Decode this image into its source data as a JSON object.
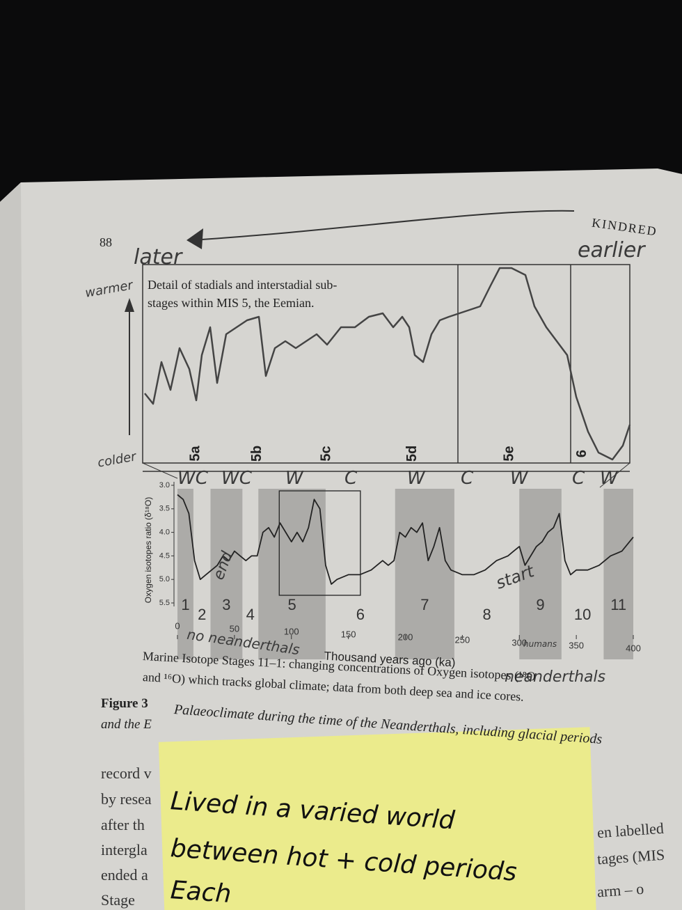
{
  "header": {
    "page_number": "88",
    "running_head": "KINDRED"
  },
  "annotations": {
    "later": "later",
    "earlier": "earlier",
    "warmer": "warmer",
    "colder": "colder",
    "end": "end",
    "start": "start",
    "no_neanderthals": "no neanderthals",
    "neanderthals": "neanderthals",
    "humans": "humans",
    "climate_marks": [
      "WC",
      "WC",
      "W",
      "C",
      "W",
      "C",
      "W",
      "C",
      "W"
    ]
  },
  "detail_chart": {
    "title": "Detail of stadials and interstadial sub-stages within MIS 5, the Eemian.",
    "substages": [
      "5a",
      "5b",
      "5c",
      "5d",
      "5e",
      "6"
    ]
  },
  "chart_data": {
    "type": "line",
    "xlabel": "Thousand years ago (ka)",
    "ylabel": "Oxygen isotopes ratio (δ¹⁸O)",
    "x": [
      0,
      5,
      10,
      15,
      20,
      25,
      30,
      35,
      40,
      45,
      50,
      55,
      60,
      65,
      70,
      75,
      80,
      85,
      90,
      95,
      100,
      105,
      110,
      115,
      120,
      125,
      130,
      135,
      140,
      150,
      160,
      170,
      180,
      185,
      190,
      195,
      200,
      205,
      210,
      215,
      220,
      225,
      230,
      235,
      240,
      250,
      260,
      270,
      280,
      290,
      295,
      300,
      305,
      310,
      315,
      320,
      325,
      330,
      335,
      340,
      345,
      350,
      360,
      370,
      380,
      390,
      400
    ],
    "series": [
      {
        "color": "#222222",
        "values": [
          3.2,
          3.3,
          3.6,
          4.6,
          5.0,
          4.9,
          4.8,
          4.7,
          4.5,
          4.6,
          4.4,
          4.5,
          4.6,
          4.5,
          4.5,
          4.0,
          3.9,
          4.1,
          3.8,
          4.0,
          4.2,
          4.0,
          4.2,
          3.9,
          3.3,
          3.5,
          4.7,
          5.1,
          5.0,
          4.9,
          4.9,
          4.8,
          4.6,
          4.7,
          4.6,
          4.0,
          4.1,
          3.9,
          4.0,
          3.8,
          4.6,
          4.3,
          3.9,
          4.6,
          4.8,
          4.9,
          4.9,
          4.8,
          4.6,
          4.5,
          4.4,
          4.3,
          4.7,
          4.5,
          4.3,
          4.2,
          4.0,
          3.9,
          3.6,
          4.6,
          4.9,
          4.8,
          4.8,
          4.7,
          4.5,
          4.4,
          4.1
        ]
      }
    ],
    "xlim": [
      0,
      400
    ],
    "ylim": [
      3.0,
      5.5
    ],
    "y_inverted": true,
    "xticks": [
      0,
      50,
      100,
      150,
      200,
      250,
      300,
      350,
      400
    ],
    "yticks": [
      {
        "value": 3,
        "label": "3.0"
      },
      3.5,
      {
        "value": 4,
        "label": "4.0"
      },
      4.5,
      {
        "value": 5,
        "label": "5.0"
      },
      5.5
    ],
    "stages": [
      {
        "label": "1",
        "start": 0,
        "end": 14,
        "shaded": true
      },
      {
        "label": "2",
        "start": 14,
        "end": 29,
        "shaded": false
      },
      {
        "label": "3",
        "start": 29,
        "end": 57,
        "shaded": true
      },
      {
        "label": "4",
        "start": 57,
        "end": 71,
        "shaded": false
      },
      {
        "label": "5",
        "start": 71,
        "end": 130,
        "shaded": true
      },
      {
        "label": "6",
        "start": 130,
        "end": 191,
        "shaded": false
      },
      {
        "label": "7",
        "start": 191,
        "end": 243,
        "shaded": true
      },
      {
        "label": "8",
        "start": 243,
        "end": 300,
        "shaded": false
      },
      {
        "label": "9",
        "start": 300,
        "end": 337,
        "shaded": true
      },
      {
        "label": "10",
        "start": 337,
        "end": 374,
        "shaded": false
      },
      {
        "label": "11",
        "start": 374,
        "end": 400,
        "shaded": true
      }
    ]
  },
  "caption": {
    "lines": [
      "Marine Isotope Stages 11–1: changing concentrations of Oxygen isotopes (¹⁸O",
      "and ¹⁶O) which tracks global climate; data from both deep sea and ice cores."
    ],
    "figure_label": "Figure 3",
    "figure_title": "Palaeoclimate during the time of the Neanderthals, including glacial periods",
    "figure_title_cont": "and the E"
  },
  "body": {
    "left": [
      "record v",
      "by resea",
      "after th",
      "intergla",
      "ended a",
      "Stage"
    ],
    "right": [
      "en labelled",
      "tages (MIS",
      "arm – o"
    ]
  },
  "sticky_note": {
    "lines": [
      "Lived in a varied world",
      "between hot + cold periods",
      "Each"
    ]
  }
}
